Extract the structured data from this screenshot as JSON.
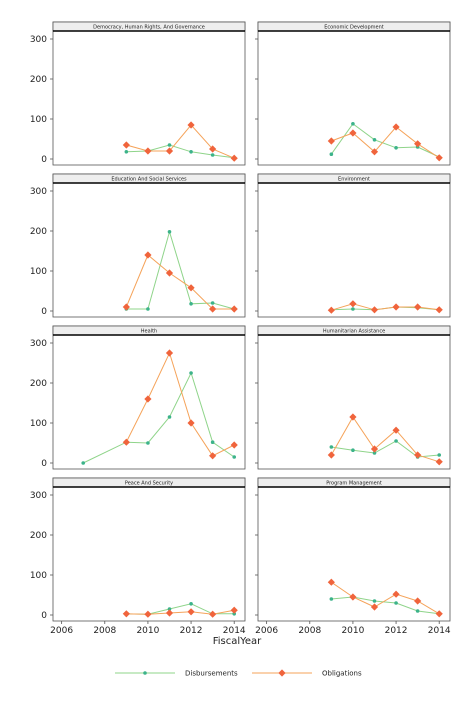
{
  "chart_data": {
    "type": "line",
    "xlabel": "FiscalYear",
    "x_ticks": [
      2006,
      2008,
      2010,
      2012,
      2014
    ],
    "y_ticks": [
      0,
      100,
      200,
      300
    ],
    "xlim": [
      2005.6,
      2014.5
    ],
    "ylim": [
      -15,
      320
    ],
    "legend_position": "bottom",
    "series_styles": [
      {
        "name": "Disbursements",
        "color": "#3cb38a",
        "line_color": "#8fd48a",
        "marker": "circle"
      },
      {
        "name": "Obligations",
        "color": "#f0643c",
        "line_color": "#f5a35a",
        "marker": "diamond"
      }
    ],
    "panels": [
      {
        "title": "Democracy, Human Rights, And Governance",
        "series": [
          {
            "name": "Disbursements",
            "x": [
              2009,
              2010,
              2011,
              2012,
              2013,
              2014
            ],
            "y": [
              18,
              20,
              35,
              18,
              10,
              3
            ]
          },
          {
            "name": "Obligations",
            "x": [
              2009,
              2010,
              2011,
              2012,
              2013,
              2014
            ],
            "y": [
              35,
              20,
              20,
              85,
              25,
              2
            ]
          }
        ]
      },
      {
        "title": "Economic Development",
        "series": [
          {
            "name": "Disbursements",
            "x": [
              2009,
              2010,
              2011,
              2012,
              2013,
              2014
            ],
            "y": [
              12,
              88,
              48,
              28,
              30,
              5
            ]
          },
          {
            "name": "Obligations",
            "x": [
              2009,
              2010,
              2011,
              2012,
              2013,
              2014
            ],
            "y": [
              45,
              65,
              18,
              80,
              38,
              3
            ]
          }
        ]
      },
      {
        "title": "Education And Social Services",
        "series": [
          {
            "name": "Disbursements",
            "x": [
              2009,
              2010,
              2011,
              2012,
              2013,
              2014
            ],
            "y": [
              5,
              5,
              198,
              18,
              20,
              5
            ]
          },
          {
            "name": "Obligations",
            "x": [
              2009,
              2010,
              2011,
              2012,
              2013,
              2014
            ],
            "y": [
              10,
              140,
              95,
              58,
              5,
              5
            ]
          }
        ]
      },
      {
        "title": "Environment",
        "series": [
          {
            "name": "Disbursements",
            "x": [
              2009,
              2010,
              2011,
              2012,
              2013,
              2014
            ],
            "y": [
              3,
              5,
              3,
              10,
              8,
              3
            ]
          },
          {
            "name": "Obligations",
            "x": [
              2009,
              2010,
              2011,
              2012,
              2013,
              2014
            ],
            "y": [
              2,
              18,
              3,
              10,
              10,
              3
            ]
          }
        ]
      },
      {
        "title": "Health",
        "series": [
          {
            "name": "Disbursements",
            "x": [
              2007,
              2009,
              2010,
              2011,
              2012,
              2013,
              2014
            ],
            "y": [
              0,
              52,
              50,
              115,
              225,
              52,
              15
            ]
          },
          {
            "name": "Obligations",
            "x": [
              2009,
              2010,
              2011,
              2012,
              2013,
              2014
            ],
            "y": [
              52,
              160,
              275,
              100,
              18,
              45
            ]
          }
        ]
      },
      {
        "title": "Humanitarian Assistance",
        "series": [
          {
            "name": "Disbursements",
            "x": [
              2009,
              2010,
              2011,
              2012,
              2013,
              2014
            ],
            "y": [
              40,
              32,
              25,
              55,
              15,
              20
            ]
          },
          {
            "name": "Obligations",
            "x": [
              2009,
              2010,
              2011,
              2012,
              2013,
              2014
            ],
            "y": [
              20,
              115,
              35,
              82,
              20,
              3
            ]
          }
        ]
      },
      {
        "title": "Peace And Security",
        "series": [
          {
            "name": "Disbursements",
            "x": [
              2009,
              2010,
              2011,
              2012,
              2013,
              2014
            ],
            "y": [
              3,
              2,
              15,
              28,
              3,
              3
            ]
          },
          {
            "name": "Obligations",
            "x": [
              2009,
              2010,
              2011,
              2012,
              2013,
              2014
            ],
            "y": [
              3,
              2,
              5,
              8,
              2,
              12
            ]
          }
        ]
      },
      {
        "title": "Program Management",
        "series": [
          {
            "name": "Disbursements",
            "x": [
              2009,
              2010,
              2011,
              2012,
              2013,
              2014
            ],
            "y": [
              40,
              45,
              35,
              30,
              10,
              3
            ]
          },
          {
            "name": "Obligations",
            "x": [
              2009,
              2010,
              2011,
              2012,
              2013,
              2014
            ],
            "y": [
              82,
              45,
              20,
              52,
              35,
              3
            ]
          }
        ]
      }
    ]
  }
}
